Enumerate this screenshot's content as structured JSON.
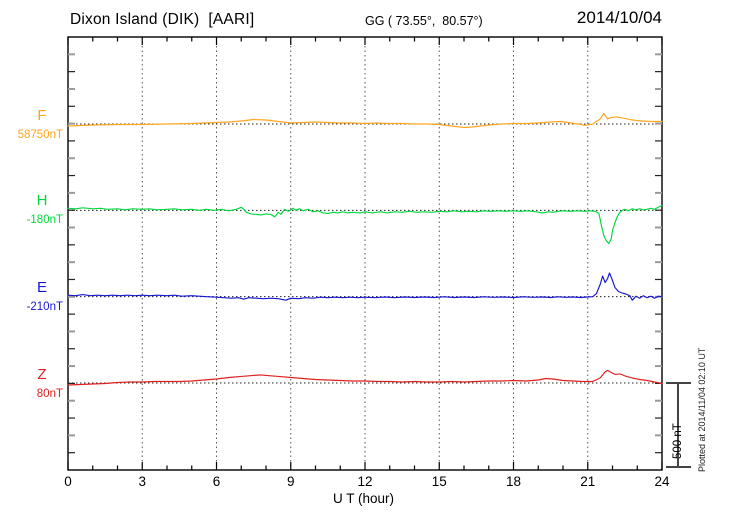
{
  "header": {
    "title": "Dixon Island (DIK)  [AARI]",
    "coords": "GG ( 73.55°,  80.57°)",
    "date": "2014/10/04"
  },
  "footnote": "Plotted at 2014/11/04 02:10 UT",
  "scale_bar": {
    "label": "500 nT",
    "value_nT": 500
  },
  "colors": {
    "F": "#ffa51e",
    "H": "#00d83e",
    "E": "#1616d2",
    "Z": "#e01f1f",
    "axis": "#000000",
    "grid": "#555555",
    "baseline": "#222222",
    "minor_tick_alt": "#999999"
  },
  "chart_data": {
    "type": "line",
    "title": "Dixon Island (DIK) [AARI] magnetogram",
    "date": "2014/10/04",
    "xlabel": "U T (hour)",
    "x_range": [
      0,
      24
    ],
    "x_tick_labels": [
      "0",
      "3",
      "6",
      "9",
      "12",
      "15",
      "18",
      "21",
      "24"
    ],
    "x_major_step_hours": 3,
    "x_minor_step_hours": 1,
    "grid": "vertical dotted every 3 hours",
    "scale_bar_nT": 500,
    "channels": [
      {
        "name": "F",
        "base_label": "58750nT",
        "base_value_nT": 58750,
        "color": "#ffa51e",
        "offsets_nT": [
          [
            0,
            -12
          ],
          [
            0.5,
            -9
          ],
          [
            1,
            -6
          ],
          [
            2,
            -3
          ],
          [
            3,
            -3
          ],
          [
            4,
            0
          ],
          [
            5,
            3
          ],
          [
            5.5,
            6
          ],
          [
            6,
            9
          ],
          [
            6.5,
            12
          ],
          [
            7,
            18
          ],
          [
            7.5,
            27
          ],
          [
            8,
            24
          ],
          [
            8.5,
            15
          ],
          [
            9,
            6
          ],
          [
            9.5,
            9
          ],
          [
            10,
            12
          ],
          [
            10.5,
            9
          ],
          [
            11,
            6
          ],
          [
            11.5,
            6
          ],
          [
            12,
            3
          ],
          [
            12.5,
            6
          ],
          [
            13,
            3
          ],
          [
            13.5,
            3
          ],
          [
            14,
            0
          ],
          [
            14.5,
            0
          ],
          [
            15,
            -3
          ],
          [
            15.5,
            -12
          ],
          [
            16,
            -21
          ],
          [
            16.3,
            -18
          ],
          [
            16.5,
            -15
          ],
          [
            17,
            -6
          ],
          [
            17.5,
            0
          ],
          [
            18,
            3
          ],
          [
            18.5,
            3
          ],
          [
            19,
            6
          ],
          [
            19.5,
            12
          ],
          [
            19.9,
            15
          ],
          [
            20.2,
            9
          ],
          [
            20.6,
            0
          ],
          [
            20.9,
            -8
          ],
          [
            21.2,
            0
          ],
          [
            21.5,
            30
          ],
          [
            21.65,
            62
          ],
          [
            21.8,
            30
          ],
          [
            21.95,
            40
          ],
          [
            22.2,
            42
          ],
          [
            22.5,
            33
          ],
          [
            22.8,
            24
          ],
          [
            23.2,
            18
          ],
          [
            23.6,
            15
          ],
          [
            24,
            15
          ]
        ]
      },
      {
        "name": "H",
        "base_label": "-180nT",
        "base_value_nT": -180,
        "color": "#00d83e",
        "offsets_nT": [
          [
            0,
            12
          ],
          [
            0.3,
            9
          ],
          [
            0.6,
            15
          ],
          [
            1,
            9
          ],
          [
            1.3,
            12
          ],
          [
            1.6,
            6
          ],
          [
            2,
            9
          ],
          [
            2.3,
            3
          ],
          [
            2.6,
            9
          ],
          [
            3,
            6
          ],
          [
            3.3,
            9
          ],
          [
            3.6,
            3
          ],
          [
            4,
            6
          ],
          [
            4.3,
            9
          ],
          [
            4.6,
            3
          ],
          [
            5,
            6
          ],
          [
            5.3,
            0
          ],
          [
            5.6,
            6
          ],
          [
            5.9,
            0
          ],
          [
            6.2,
            6
          ],
          [
            6.5,
            -3
          ],
          [
            6.8,
            6
          ],
          [
            7,
            18
          ],
          [
            7.1,
            6
          ],
          [
            7.2,
            -12
          ],
          [
            7.4,
            -21
          ],
          [
            7.6,
            -24
          ],
          [
            7.8,
            -27
          ],
          [
            8,
            -21
          ],
          [
            8.2,
            -24
          ],
          [
            8.35,
            -39
          ],
          [
            8.5,
            -12
          ],
          [
            8.6,
            -24
          ],
          [
            8.75,
            6
          ],
          [
            8.9,
            -6
          ],
          [
            9,
            3
          ],
          [
            9.1,
            12
          ],
          [
            9.2,
            0
          ],
          [
            9.35,
            9
          ],
          [
            9.5,
            -3
          ],
          [
            9.7,
            6
          ],
          [
            9.9,
            -9
          ],
          [
            10.1,
            -3
          ],
          [
            10.3,
            -15
          ],
          [
            10.5,
            -18
          ],
          [
            10.7,
            -12
          ],
          [
            10.9,
            -15
          ],
          [
            11.1,
            -9
          ],
          [
            11.3,
            -15
          ],
          [
            11.5,
            -12
          ],
          [
            11.8,
            -15
          ],
          [
            12,
            -9
          ],
          [
            12.3,
            -15
          ],
          [
            12.6,
            -9
          ],
          [
            12.9,
            -15
          ],
          [
            13.2,
            -9
          ],
          [
            13.5,
            -12
          ],
          [
            13.8,
            -6
          ],
          [
            14.1,
            -12
          ],
          [
            14.4,
            -9
          ],
          [
            14.7,
            -12
          ],
          [
            15,
            -6
          ],
          [
            15.3,
            -9
          ],
          [
            15.6,
            -3
          ],
          [
            15.9,
            -9
          ],
          [
            16.2,
            -6
          ],
          [
            16.5,
            -9
          ],
          [
            16.8,
            -3
          ],
          [
            17.1,
            -6
          ],
          [
            17.4,
            -3
          ],
          [
            17.7,
            -6
          ],
          [
            18,
            -3
          ],
          [
            18.3,
            -6
          ],
          [
            18.6,
            -3
          ],
          [
            18.9,
            -9
          ],
          [
            19.2,
            -15
          ],
          [
            19.4,
            -9
          ],
          [
            19.6,
            -12
          ],
          [
            19.8,
            -6
          ],
          [
            20,
            -3
          ],
          [
            20.3,
            -6
          ],
          [
            20.6,
            -3
          ],
          [
            20.9,
            -6
          ],
          [
            21.1,
            -3
          ],
          [
            21.3,
            -6
          ],
          [
            21.45,
            -18
          ],
          [
            21.55,
            -90
          ],
          [
            21.65,
            -150
          ],
          [
            21.75,
            -180
          ],
          [
            21.85,
            -198
          ],
          [
            21.95,
            -168
          ],
          [
            22,
            -120
          ],
          [
            22.1,
            -72
          ],
          [
            22.2,
            -36
          ],
          [
            22.3,
            -12
          ],
          [
            22.4,
            0
          ],
          [
            22.5,
            6
          ],
          [
            22.65,
            -3
          ],
          [
            22.8,
            9
          ],
          [
            22.95,
            3
          ],
          [
            23.1,
            9
          ],
          [
            23.25,
            3
          ],
          [
            23.4,
            6
          ],
          [
            23.55,
            12
          ],
          [
            23.7,
            6
          ],
          [
            23.85,
            18
          ],
          [
            24,
            30
          ]
        ]
      },
      {
        "name": "E",
        "base_label": "-210nT",
        "base_value_nT": -210,
        "color": "#1616d2",
        "offsets_nT": [
          [
            0,
            9
          ],
          [
            0.3,
            6
          ],
          [
            0.6,
            12
          ],
          [
            0.9,
            6
          ],
          [
            1.2,
            9
          ],
          [
            1.5,
            6
          ],
          [
            1.8,
            9
          ],
          [
            2.1,
            6
          ],
          [
            2.4,
            9
          ],
          [
            2.7,
            6
          ],
          [
            3,
            9
          ],
          [
            3.3,
            6
          ],
          [
            3.6,
            9
          ],
          [
            4,
            6
          ],
          [
            4.3,
            9
          ],
          [
            4.6,
            3
          ],
          [
            5,
            6
          ],
          [
            5.3,
            3
          ],
          [
            5.6,
            0
          ],
          [
            6,
            -3
          ],
          [
            6.3,
            -6
          ],
          [
            6.6,
            -9
          ],
          [
            6.9,
            -6
          ],
          [
            7.1,
            -15
          ],
          [
            7.3,
            -6
          ],
          [
            7.6,
            -9
          ],
          [
            7.9,
            -12
          ],
          [
            8.2,
            -9
          ],
          [
            8.5,
            -12
          ],
          [
            8.8,
            -21
          ],
          [
            9,
            -9
          ],
          [
            9.3,
            -12
          ],
          [
            9.6,
            -6
          ],
          [
            9.9,
            -9
          ],
          [
            10.2,
            -3
          ],
          [
            10.5,
            -6
          ],
          [
            10.8,
            -3
          ],
          [
            11.1,
            -6
          ],
          [
            11.4,
            -3
          ],
          [
            11.7,
            -6
          ],
          [
            12,
            -3
          ],
          [
            12.4,
            -6
          ],
          [
            12.8,
            -2
          ],
          [
            13.2,
            -6
          ],
          [
            13.6,
            -2
          ],
          [
            14,
            -5
          ],
          [
            14.4,
            -2
          ],
          [
            14.8,
            -5
          ],
          [
            15.2,
            -1
          ],
          [
            15.6,
            -5
          ],
          [
            16,
            -2
          ],
          [
            16.4,
            -5
          ],
          [
            16.8,
            -1
          ],
          [
            17.2,
            -4
          ],
          [
            17.6,
            -2
          ],
          [
            18,
            -5
          ],
          [
            18.4,
            -1
          ],
          [
            18.8,
            -4
          ],
          [
            19.2,
            -2
          ],
          [
            19.5,
            -5
          ],
          [
            19.8,
            -1
          ],
          [
            20.1,
            -4
          ],
          [
            20.4,
            -2
          ],
          [
            20.7,
            -5
          ],
          [
            21,
            -2
          ],
          [
            21.2,
            0
          ],
          [
            21.35,
            18
          ],
          [
            21.5,
            72
          ],
          [
            21.6,
            123
          ],
          [
            21.7,
            84
          ],
          [
            21.8,
            108
          ],
          [
            21.88,
            141
          ],
          [
            22,
            96
          ],
          [
            22.1,
            54
          ],
          [
            22.25,
            30
          ],
          [
            22.4,
            21
          ],
          [
            22.55,
            15
          ],
          [
            22.7,
            6
          ],
          [
            22.8,
            -21
          ],
          [
            22.95,
            3
          ],
          [
            23.1,
            -9
          ],
          [
            23.25,
            6
          ],
          [
            23.4,
            -6
          ],
          [
            23.55,
            3
          ],
          [
            23.7,
            -9
          ],
          [
            23.85,
            3
          ],
          [
            24,
            0
          ]
        ]
      },
      {
        "name": "Z",
        "base_label": "80nT",
        "base_value_nT": 80,
        "color": "#e01f1f",
        "offsets_nT": [
          [
            0,
            -12
          ],
          [
            0.5,
            -9
          ],
          [
            1,
            -6
          ],
          [
            1.5,
            -3
          ],
          [
            2,
            3
          ],
          [
            2.5,
            6
          ],
          [
            3,
            6
          ],
          [
            3.5,
            9
          ],
          [
            4,
            9
          ],
          [
            4.5,
            9
          ],
          [
            5,
            12
          ],
          [
            5.5,
            18
          ],
          [
            6,
            24
          ],
          [
            6.5,
            33
          ],
          [
            7,
            39
          ],
          [
            7.5,
            45
          ],
          [
            7.8,
            48
          ],
          [
            8,
            45
          ],
          [
            8.5,
            39
          ],
          [
            9,
            33
          ],
          [
            9.5,
            27
          ],
          [
            10,
            21
          ],
          [
            10.5,
            18
          ],
          [
            11,
            15
          ],
          [
            11.5,
            12
          ],
          [
            12,
            12
          ],
          [
            12.5,
            9
          ],
          [
            13,
            9
          ],
          [
            13.5,
            6
          ],
          [
            14,
            9
          ],
          [
            14.5,
            6
          ],
          [
            15,
            6
          ],
          [
            15.5,
            9
          ],
          [
            16,
            6
          ],
          [
            16.5,
            9
          ],
          [
            17,
            12
          ],
          [
            17.5,
            12
          ],
          [
            18,
            15
          ],
          [
            18.5,
            12
          ],
          [
            19,
            18
          ],
          [
            19.3,
            27
          ],
          [
            19.6,
            24
          ],
          [
            20,
            15
          ],
          [
            20.4,
            12
          ],
          [
            20.8,
            9
          ],
          [
            21.2,
            9
          ],
          [
            21.5,
            30
          ],
          [
            21.7,
            66
          ],
          [
            21.8,
            75
          ],
          [
            21.9,
            66
          ],
          [
            22.1,
            51
          ],
          [
            22.3,
            54
          ],
          [
            22.5,
            42
          ],
          [
            22.8,
            30
          ],
          [
            23.1,
            21
          ],
          [
            23.4,
            15
          ],
          [
            23.7,
            6
          ],
          [
            23.9,
            0
          ],
          [
            24,
            -3
          ]
        ]
      }
    ]
  }
}
